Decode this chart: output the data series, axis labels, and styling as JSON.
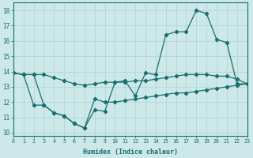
{
  "xlabel": "Humidex (Indice chaleur)",
  "bg_color": "#cce8e8",
  "line_color": "#1a6e6e",
  "grid_color": "#b8d8d8",
  "x_ticks": [
    0,
    1,
    2,
    3,
    4,
    5,
    6,
    7,
    8,
    9,
    10,
    11,
    12,
    13,
    14,
    15,
    16,
    17,
    18,
    19,
    20,
    21,
    22,
    23
  ],
  "y_ticks": [
    10,
    11,
    12,
    13,
    14,
    15,
    16,
    17,
    18
  ],
  "xlim": [
    0,
    23
  ],
  "ylim": [
    9.8,
    18.5
  ],
  "line1_x": [
    0,
    1,
    2,
    3,
    4,
    5,
    6,
    7,
    8,
    9,
    10,
    11,
    12,
    13,
    14,
    15,
    16,
    17,
    18,
    19,
    20,
    21,
    22,
    23
  ],
  "line1_y": [
    13.9,
    13.8,
    13.8,
    11.8,
    11.3,
    11.1,
    10.6,
    10.3,
    11.5,
    11.4,
    13.3,
    13.4,
    12.4,
    13.9,
    13.8,
    16.4,
    16.6,
    16.6,
    18.0,
    17.8,
    16.1,
    15.9,
    13.2,
    13.2
  ],
  "line2_x": [
    0,
    1,
    2,
    3,
    4,
    5,
    6,
    7,
    8,
    9,
    10,
    11,
    12,
    13,
    14,
    15,
    16,
    17,
    18,
    19,
    20,
    21,
    22,
    23
  ],
  "line2_y": [
    13.9,
    13.8,
    13.8,
    13.8,
    13.6,
    13.4,
    13.2,
    13.1,
    13.2,
    13.3,
    13.3,
    13.3,
    13.4,
    13.4,
    13.5,
    13.6,
    13.7,
    13.8,
    13.8,
    13.8,
    13.7,
    13.7,
    13.5,
    13.2
  ],
  "line3_x": [
    0,
    1,
    2,
    3,
    4,
    5,
    6,
    7,
    8,
    9,
    10,
    11,
    12,
    13,
    14,
    15,
    16,
    17,
    18,
    19,
    20,
    21,
    22,
    23
  ],
  "line3_y": [
    13.9,
    13.8,
    11.8,
    11.8,
    11.3,
    11.1,
    10.6,
    10.3,
    12.2,
    12.0,
    12.0,
    12.1,
    12.2,
    12.3,
    12.4,
    12.5,
    12.6,
    12.6,
    12.7,
    12.8,
    12.9,
    13.0,
    13.1,
    13.2
  ]
}
